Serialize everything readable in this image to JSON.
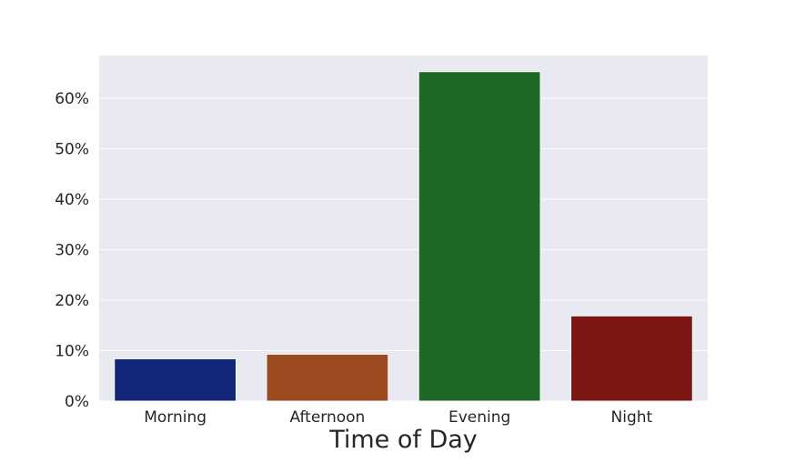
{
  "chart_data": {
    "type": "bar",
    "title": "",
    "xlabel": "Time of Day",
    "ylabel": "",
    "categories": [
      "Morning",
      "Afternoon",
      "Evening",
      "Night"
    ],
    "values": [
      8.4,
      9.3,
      65.3,
      16.9
    ],
    "value_unit": "%",
    "ylim": [
      0,
      68.5
    ],
    "yticks": [
      0,
      10,
      20,
      30,
      40,
      50,
      60
    ],
    "ytick_labels": [
      "0%",
      "10%",
      "20%",
      "30%",
      "40%",
      "50%",
      "60%"
    ],
    "grid": true,
    "legend": "none",
    "colors": [
      "#12277a",
      "#9c4a1f",
      "#1f6826",
      "#7a1712"
    ],
    "background": "#e9e9f2"
  }
}
